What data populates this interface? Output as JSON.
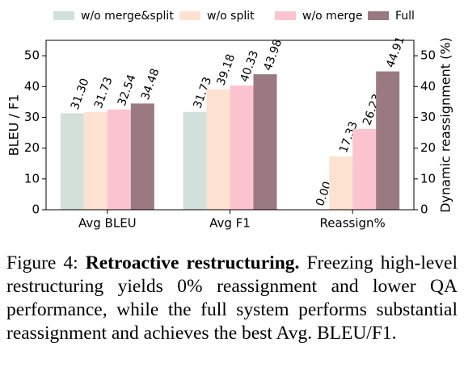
{
  "chart_data": {
    "type": "bar",
    "categories": [
      "Avg BLEU",
      "Avg F1",
      "Reassign%"
    ],
    "category_axes": [
      "y",
      "y",
      "y2"
    ],
    "series": [
      {
        "name": "w/o merge&split",
        "color": "#d3e0d9",
        "values": [
          31.3,
          31.73,
          0
        ],
        "value_labels": [
          "31.30",
          "31.73",
          "0.00"
        ]
      },
      {
        "name": "w/o split",
        "color": "#fde2d2",
        "values": [
          31.73,
          39.18,
          17.33
        ],
        "value_labels": [
          "31.73",
          "39.18",
          "17.33"
        ]
      },
      {
        "name": "w/o merge",
        "color": "#fbc4cf",
        "values": [
          32.54,
          40.33,
          26.23
        ],
        "value_labels": [
          "32.54",
          "40.33",
          "26.23"
        ]
      },
      {
        "name": "Full",
        "color": "#9b7980",
        "values": [
          34.48,
          43.98,
          44.91
        ],
        "value_labels": [
          "34.48",
          "43.98",
          "44.91"
        ]
      }
    ],
    "ylabel": "BLEU / F1",
    "y2label": "Dynamic reassignment (%)",
    "ylim": [
      0,
      55
    ],
    "yticks": [
      0,
      10,
      20,
      30,
      40,
      50
    ],
    "y2lim": [
      0,
      55
    ],
    "y2ticks": [
      0,
      10,
      20,
      30,
      40,
      50
    ]
  },
  "caption": {
    "label": "Figure 4:",
    "heading": "Retroactive restructuring.",
    "text": "Freezing high-level restructuring yields 0% reassignment and lower QA performance, while the full system performs substantial reassignment and achieves the best Avg. BLEU/F1."
  }
}
